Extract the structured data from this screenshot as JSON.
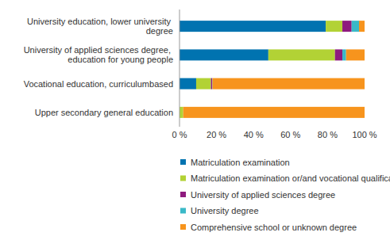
{
  "chart_data": {
    "type": "bar",
    "orientation": "horizontal",
    "stacked": true,
    "grid": false,
    "legend": "bottom",
    "categories": [
      "University education, lower university degree",
      "University of applied sciences degree, education for young people",
      "Vocational education, curriculumbased",
      "Upper secondary general education"
    ],
    "series": [
      {
        "name": "Matriculation examination",
        "color": "#0073b0",
        "values": [
          79,
          48,
          9,
          0
        ]
      },
      {
        "name": "Matriculation examination or/and vocational qualification",
        "color": "#b2d235",
        "values": [
          9,
          36,
          8,
          2
        ]
      },
      {
        "name": "University of applied sciences degree",
        "color": "#8e1a7e",
        "values": [
          5,
          4,
          0.6,
          0
        ]
      },
      {
        "name": "University degree",
        "color": "#3ab9c8",
        "values": [
          4,
          2,
          0.2,
          0
        ]
      },
      {
        "name": "Comprehensive school or unknown degree",
        "color": "#f7941d",
        "values": [
          3,
          10,
          82.2,
          98
        ]
      }
    ],
    "xlim": [
      0,
      100
    ],
    "xticks": [
      {
        "value": 0,
        "label": "0 %"
      },
      {
        "value": 20,
        "label": "20 %"
      },
      {
        "value": 40,
        "label": "40 %"
      },
      {
        "value": 60,
        "label": "60 %"
      },
      {
        "value": 80,
        "label": "80 %"
      },
      {
        "value": 100,
        "label": "100 %"
      }
    ]
  }
}
